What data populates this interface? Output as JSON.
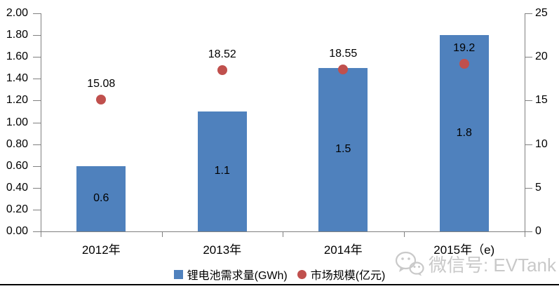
{
  "chart_data": {
    "type": "combo",
    "title": "",
    "categories": [
      "2012年",
      "2013年",
      "2014年",
      "2015年（e)"
    ],
    "series": [
      {
        "name": "锂电池需求量(GWh)",
        "type": "bar",
        "axis": "left",
        "color": "#4f81bd",
        "values": [
          0.6,
          1.1,
          1.5,
          1.8
        ],
        "labels": [
          "0.6",
          "1.1",
          "1.5",
          "1.8"
        ]
      },
      {
        "name": "市场规模(亿元)",
        "type": "scatter",
        "axis": "right",
        "color": "#c0504d",
        "values": [
          15.08,
          18.52,
          18.55,
          19.2
        ],
        "labels": [
          "15.08",
          "18.52",
          "18.55",
          "19.2"
        ]
      }
    ],
    "left_axis": {
      "min": 0,
      "max": 2,
      "step": 0.2,
      "tick_labels": [
        "0.00",
        "0.20",
        "0.40",
        "0.60",
        "0.80",
        "1.00",
        "1.20",
        "1.40",
        "1.60",
        "1.80",
        "2.00"
      ]
    },
    "right_axis": {
      "min": 0,
      "max": 25,
      "step": 5,
      "tick_labels": [
        "0",
        "5",
        "10",
        "15",
        "20",
        "25"
      ]
    },
    "grid": false,
    "legend_position": "bottom"
  },
  "legend": {
    "items": [
      {
        "label": "锂电池需求量(GWh)",
        "marker": "square",
        "color": "#4f81bd"
      },
      {
        "label": "市场规模(亿元)",
        "marker": "circle",
        "color": "#c0504d"
      }
    ]
  },
  "watermark": {
    "text": "微信号: EVTank",
    "icon": "wechat-icon"
  },
  "colors": {
    "bar": "#4f81bd",
    "dot": "#c0504d",
    "axis_line": "#808080",
    "text": "#000000",
    "watermark": "#c9c9c9",
    "bottom_rule": "#000000"
  }
}
